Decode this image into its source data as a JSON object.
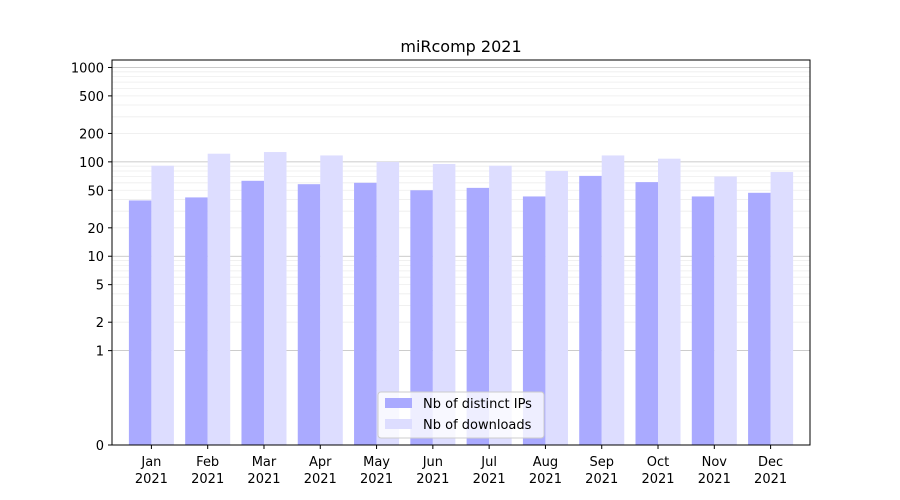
{
  "chart_data": {
    "type": "bar",
    "title": "miRcomp 2021",
    "xlabel": "",
    "ylabel": "",
    "yscale": "symlog",
    "ylim": [
      0,
      1200
    ],
    "yticks": [
      0,
      1,
      2,
      5,
      10,
      20,
      50,
      100,
      200,
      500,
      1000
    ],
    "grid": true,
    "legend_position": "lower center",
    "categories": [
      [
        "Jan",
        "2021"
      ],
      [
        "Feb",
        "2021"
      ],
      [
        "Mar",
        "2021"
      ],
      [
        "Apr",
        "2021"
      ],
      [
        "May",
        "2021"
      ],
      [
        "Jun",
        "2021"
      ],
      [
        "Jul",
        "2021"
      ],
      [
        "Aug",
        "2021"
      ],
      [
        "Sep",
        "2021"
      ],
      [
        "Oct",
        "2021"
      ],
      [
        "Nov",
        "2021"
      ],
      [
        "Dec",
        "2021"
      ]
    ],
    "series": [
      {
        "name": "Nb of distinct IPs",
        "color": "#aaaaff",
        "values": [
          39,
          42,
          63,
          58,
          60,
          50,
          53,
          43,
          71,
          61,
          43,
          47
        ]
      },
      {
        "name": "Nb of downloads",
        "color": "#ddddff",
        "values": [
          91,
          122,
          127,
          117,
          100,
          95,
          91,
          80,
          117,
          108,
          70,
          78
        ]
      }
    ]
  }
}
